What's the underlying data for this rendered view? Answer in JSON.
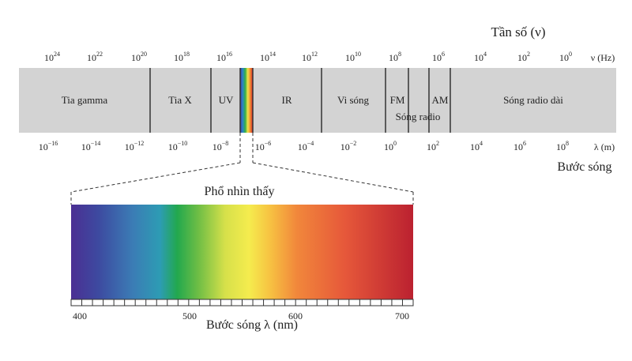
{
  "frequency_axis": {
    "title": "Tần số (ν)",
    "unit": "ν (Hz)",
    "ticks": [
      {
        "base": "10",
        "exp": "24"
      },
      {
        "base": "10",
        "exp": "22"
      },
      {
        "base": "10",
        "exp": "20"
      },
      {
        "base": "10",
        "exp": "18"
      },
      {
        "base": "10",
        "exp": "16"
      },
      {
        "base": "10",
        "exp": "14"
      },
      {
        "base": "10",
        "exp": "12"
      },
      {
        "base": "10",
        "exp": "10"
      },
      {
        "base": "10",
        "exp": "8"
      },
      {
        "base": "10",
        "exp": "6"
      },
      {
        "base": "10",
        "exp": "4"
      },
      {
        "base": "10",
        "exp": "2"
      },
      {
        "base": "10",
        "exp": "0"
      }
    ]
  },
  "wavelength_axis": {
    "title": "Bước sóng",
    "unit": "λ (m)",
    "ticks": [
      {
        "base": "10",
        "exp": "−16"
      },
      {
        "base": "10",
        "exp": "−14"
      },
      {
        "base": "10",
        "exp": "−12"
      },
      {
        "base": "10",
        "exp": "−10"
      },
      {
        "base": "10",
        "exp": "−8"
      },
      {
        "base": "10",
        "exp": "−6"
      },
      {
        "base": "10",
        "exp": "−4"
      },
      {
        "base": "10",
        "exp": "−2"
      },
      {
        "base": "10",
        "exp": "0"
      },
      {
        "base": "10",
        "exp": "2"
      },
      {
        "base": "10",
        "exp": "4"
      },
      {
        "base": "10",
        "exp": "6"
      },
      {
        "base": "10",
        "exp": "8"
      }
    ]
  },
  "regions": [
    {
      "key": "gamma",
      "label": "Tia gamma"
    },
    {
      "key": "xray",
      "label": "Tia X"
    },
    {
      "key": "uv",
      "label": "UV"
    },
    {
      "key": "ir",
      "label": "IR"
    },
    {
      "key": "micro",
      "label": "Vi sóng"
    },
    {
      "key": "fm",
      "label": "FM"
    },
    {
      "key": "am",
      "label": "AM"
    },
    {
      "key": "radio",
      "label": "Sóng radio"
    },
    {
      "key": "longradio",
      "label": "Sóng radio dài"
    }
  ],
  "visible_spectrum": {
    "title": "Phổ nhìn thấy",
    "axis_title": "Bước sóng λ (nm)",
    "tick_labels": [
      "400",
      "500",
      "600",
      "700"
    ]
  },
  "colors": {
    "band": "#d3d3d3",
    "divider": "#333333",
    "text": "#222222"
  }
}
